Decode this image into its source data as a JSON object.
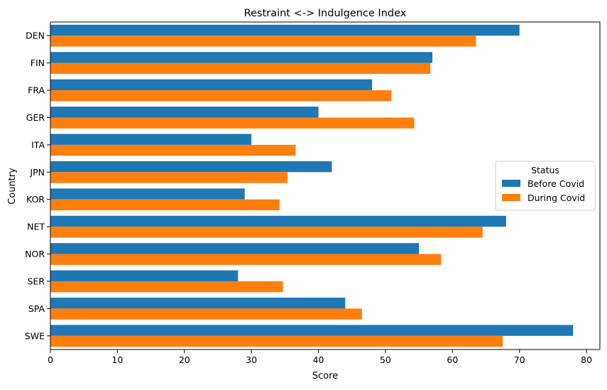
{
  "chart_data": {
    "type": "bar",
    "orientation": "horizontal",
    "title": "Restraint <-> Indulgence Index",
    "xlabel": "Score",
    "ylabel": "Country",
    "xlim": [
      0,
      82
    ],
    "xticks": [
      0,
      10,
      20,
      30,
      40,
      50,
      60,
      70,
      80
    ],
    "categories": [
      "DEN",
      "FIN",
      "FRA",
      "GER",
      "ITA",
      "JPN",
      "KOR",
      "NET",
      "NOR",
      "SER",
      "SPA",
      "SWE"
    ],
    "series": [
      {
        "name": "Before Covid",
        "color": "#1f77b4",
        "values": [
          70,
          57,
          48,
          40,
          30,
          42,
          29,
          68,
          55,
          28,
          44,
          78
        ]
      },
      {
        "name": "During Covid",
        "color": "#ff7f0e",
        "values": [
          63.5,
          56.7,
          50.9,
          54.3,
          36.6,
          35.4,
          34.2,
          64.5,
          58.3,
          34.7,
          46.5,
          67.5
        ]
      }
    ],
    "legend": {
      "title": "Status",
      "placement": "center-right"
    },
    "grid": false
  }
}
